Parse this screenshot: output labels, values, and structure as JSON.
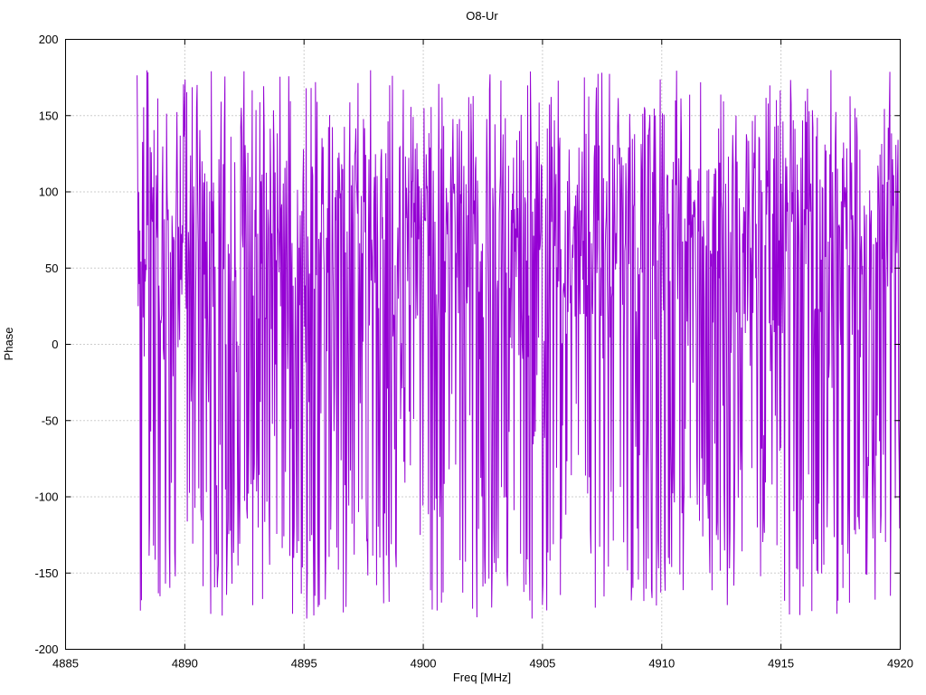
{
  "chart_data": {
    "type": "line",
    "title": "O8-Ur",
    "xlabel": "Freq [MHz]",
    "ylabel": "Phase",
    "xlim": [
      4885,
      4920
    ],
    "ylim": [
      -200,
      200
    ],
    "x_ticks": [
      4885,
      4890,
      4895,
      4900,
      4905,
      4910,
      4915,
      4920
    ],
    "y_ticks": [
      -200,
      -150,
      -100,
      -50,
      0,
      50,
      100,
      150,
      200
    ],
    "grid": true,
    "legend": "none",
    "line_color": "#9400d3",
    "series_note": "Wrapped interferometric fringe phase noise spanning roughly -180 to +180 degrees, denser in the 0..160 band with frequent excursions to the extremes; no data plotted between 4885 and 4888 MHz.",
    "data_extent": {
      "x_start": 4888.0,
      "x_end": 4920.0,
      "n_points": 1400,
      "y_min": -180,
      "y_max": 180,
      "seed": 1234
    }
  }
}
